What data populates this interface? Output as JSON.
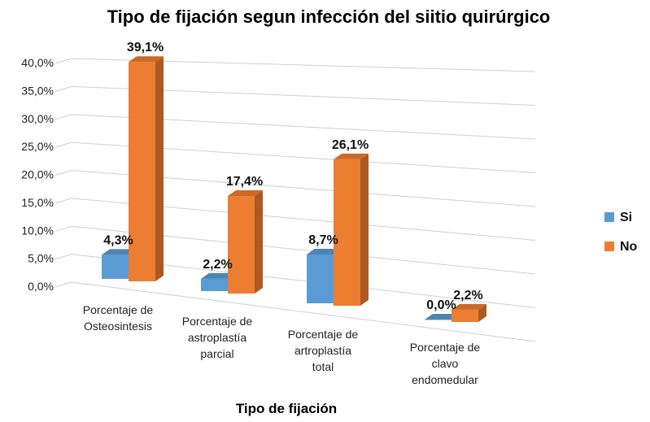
{
  "chart_data": {
    "type": "bar",
    "title": "Tipo de fijación segun infección del siitio quirúrgico",
    "xlabel": "Tipo de fijación",
    "ylabel": "",
    "ylim": [
      0,
      40
    ],
    "y_ticks": [
      "0,0%",
      "5,0%",
      "10,0%",
      "15,0%",
      "20,0%",
      "25,0%",
      "30,0%",
      "35,0%",
      "40,0%"
    ],
    "categories": [
      [
        "Porcentaje de",
        "Osteosintesis"
      ],
      [
        "Porcentaje de",
        "astroplastía",
        "parcial"
      ],
      [
        "Porcentaje de",
        "artroplastía",
        "total"
      ],
      [
        "Porcentaje de",
        "clavo",
        "endomedular"
      ]
    ],
    "series": [
      {
        "name": "Si",
        "values": [
          4.3,
          2.2,
          8.7,
          0.0
        ],
        "labels": [
          "4,3%",
          "2,2%",
          "8,7%",
          "0,0%"
        ],
        "color": "#5B9BD5"
      },
      {
        "name": "No",
        "values": [
          39.1,
          17.4,
          26.1,
          2.2
        ],
        "labels": [
          "39,1%",
          "17,4%",
          "26,1%",
          "2,2%"
        ],
        "color": "#ED7D31"
      }
    ],
    "legend_position": "right",
    "grid": true,
    "style": "3d-column"
  }
}
